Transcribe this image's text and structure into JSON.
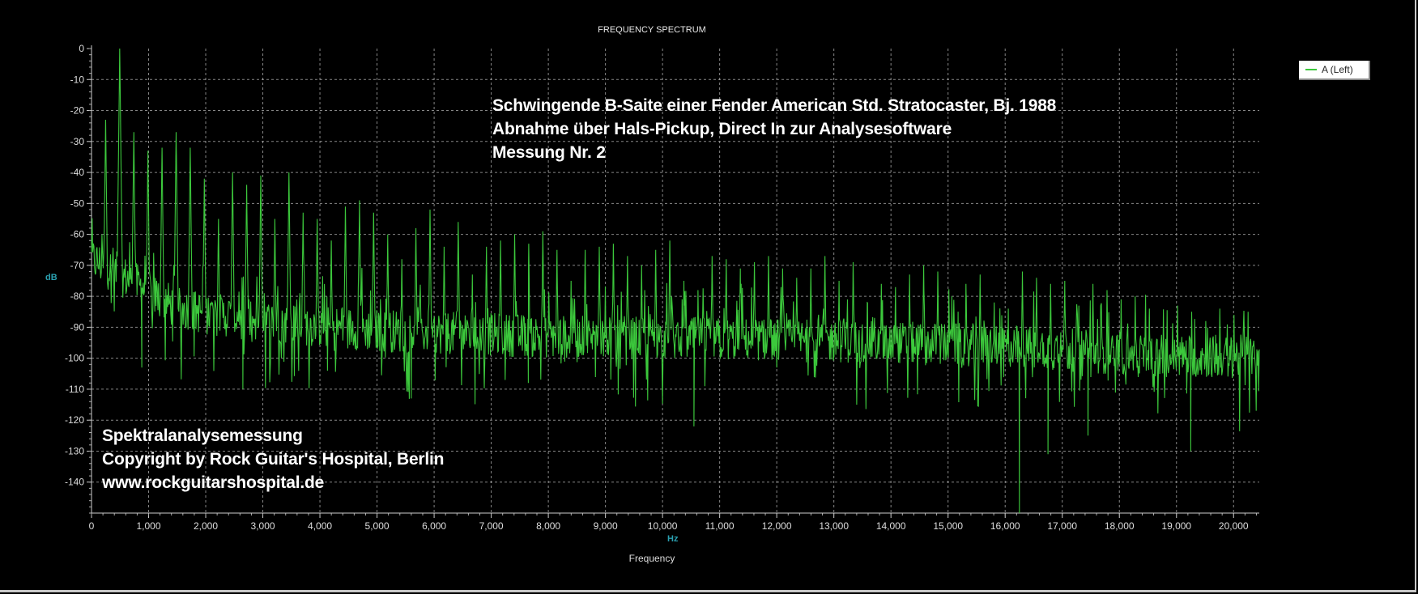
{
  "chart_data": {
    "type": "line",
    "title": "FREQUENCY SPECTRUM",
    "xlabel": "Frequency",
    "x_unit": "Hz",
    "ylabel": "dB",
    "xlim": [
      0,
      20450
    ],
    "ylim": [
      -150,
      0
    ],
    "grid": true,
    "legend_position": "top-right",
    "x_ticks": [
      0,
      1000,
      2000,
      3000,
      4000,
      5000,
      6000,
      7000,
      8000,
      9000,
      10000,
      11000,
      12000,
      13000,
      14000,
      15000,
      16000,
      17000,
      18000,
      19000,
      20000
    ],
    "x_tick_labels": [
      "0",
      "1,000",
      "2,000",
      "3,000",
      "4,000",
      "5,000",
      "6,000",
      "7,000",
      "8,000",
      "9,000",
      "10,000",
      "11,000",
      "12,000",
      "13,000",
      "14,000",
      "15,000",
      "16,000",
      "17,000",
      "18,000",
      "19,000",
      "20,000"
    ],
    "y_ticks": [
      0,
      -10,
      -20,
      -30,
      -40,
      -50,
      -60,
      -70,
      -80,
      -90,
      -100,
      -110,
      -120,
      -130,
      -140
    ],
    "y_tick_labels": [
      "0",
      "-10",
      "-20",
      "-30",
      "-40",
      "-50",
      "-60",
      "-70",
      "-80",
      "-90",
      "-100",
      "-110",
      "-120",
      "-130",
      "-140"
    ],
    "series": [
      {
        "name": "A (Left)",
        "color": "#3cc83c",
        "fundamental_hz": 247,
        "harmonic_peaks_db": [
          -23,
          0,
          -27,
          -33,
          -32,
          -27,
          -32,
          -42,
          -55,
          -40,
          -44,
          -41,
          -55,
          -40,
          -53,
          -55,
          -62,
          -51,
          -49,
          -53,
          -60,
          -68,
          -58,
          -52,
          -64,
          -56,
          -73,
          -64,
          -62,
          -60,
          -63,
          -59,
          -65,
          -75,
          -65,
          -64,
          -63,
          -67,
          -70,
          -65,
          -62,
          -75,
          -78,
          -67,
          -68,
          -71,
          -69,
          -67,
          -71,
          -74,
          -71,
          -67,
          -75,
          -69,
          -82,
          -76,
          -77,
          -73,
          -70,
          -72,
          -80,
          -76,
          -73,
          -82,
          -84,
          -72,
          -74,
          -76,
          -75,
          -83,
          -76,
          -78,
          -81,
          -80,
          -84,
          -86,
          -83,
          -85,
          -88,
          -84,
          -86,
          -85
        ],
        "noise_floor": [
          {
            "hz": 0,
            "db": -68
          },
          {
            "hz": 600,
            "db": -74
          },
          {
            "hz": 1500,
            "db": -84
          },
          {
            "hz": 3000,
            "db": -88
          },
          {
            "hz": 5000,
            "db": -91
          },
          {
            "hz": 8000,
            "db": -93
          },
          {
            "hz": 12000,
            "db": -94
          },
          {
            "hz": 16000,
            "db": -96
          },
          {
            "hz": 18500,
            "db": -99
          },
          {
            "hz": 20450,
            "db": -100
          }
        ],
        "notable_minima": [
          {
            "hz": 880,
            "db": -103
          },
          {
            "hz": 2650,
            "db": -110
          },
          {
            "hz": 5600,
            "db": -113
          },
          {
            "hz": 7650,
            "db": -108
          },
          {
            "hz": 10550,
            "db": -122
          },
          {
            "hz": 13400,
            "db": -115
          },
          {
            "hz": 16250,
            "db": -150
          },
          {
            "hz": 16750,
            "db": -131
          },
          {
            "hz": 17450,
            "db": -125
          },
          {
            "hz": 19250,
            "db": -130
          }
        ]
      }
    ]
  },
  "annotations": {
    "header_lines": [
      "Schwingende B-Saite einer Fender American Std. Stratocaster, Bj. 1988",
      "Abnahme über Hals-Pickup, Direct In zur Analysesoftware",
      "Messung Nr. 2"
    ],
    "footer_lines": [
      "Spektralanalysemessung",
      "Copyright by Rock Guitar's Hospital, Berlin",
      "www.rockguitarshospital.de"
    ]
  },
  "colors": {
    "background": "#000000",
    "trace": "#3cc83c",
    "grid": "#b4b4b4",
    "unit_label": "#2aa0b0"
  }
}
